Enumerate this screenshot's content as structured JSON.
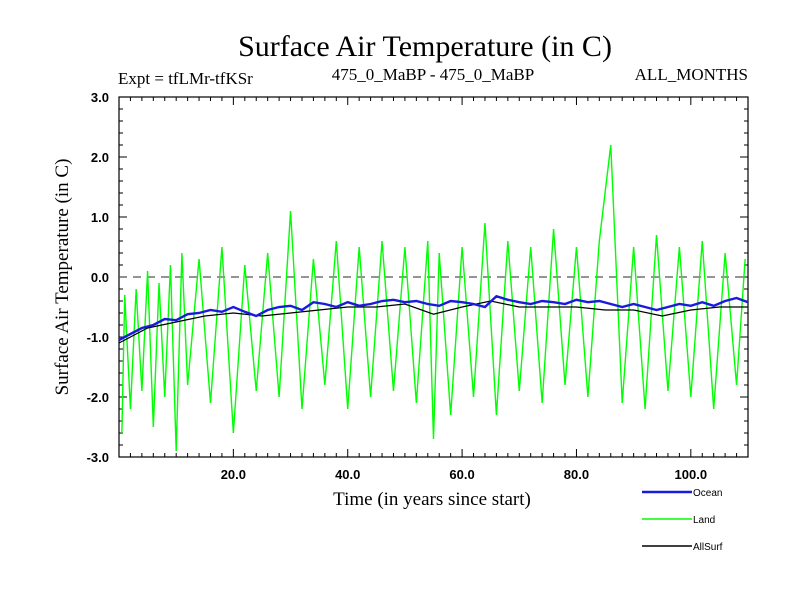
{
  "chart_data": {
    "type": "line",
    "title": "Surface Air Temperature (in C)",
    "subtitle_left": "Expt = tfLMr-tfKSr",
    "subtitle_center": "475_0_MaBP - 475_0_MaBP",
    "subtitle_right": "ALL_MONTHS",
    "xlabel": "Time (in years since start)",
    "ylabel": "Surface Air Temperature (in C)",
    "xlim": [
      0,
      110
    ],
    "ylim": [
      -3.0,
      3.0
    ],
    "x_ticks": [
      20,
      40,
      60,
      80,
      100
    ],
    "x_tick_labels": [
      "20.0",
      "40.0",
      "60.0",
      "80.0",
      "100.0"
    ],
    "y_ticks": [
      -3,
      -2,
      -1,
      0,
      1,
      2,
      3
    ],
    "y_tick_labels": [
      "-3.0",
      "-2.0",
      "-1.0",
      "0.0",
      "1.0",
      "2.0",
      "3.0"
    ],
    "reference_line": 0.0,
    "legend_position": "bottom-right",
    "series": [
      {
        "name": "Ocean",
        "color": "#1a1adc",
        "x": [
          0,
          2,
          4,
          6,
          8,
          10,
          12,
          14,
          16,
          18,
          20,
          22,
          24,
          26,
          28,
          30,
          32,
          34,
          36,
          38,
          40,
          42,
          44,
          46,
          48,
          50,
          52,
          54,
          56,
          58,
          60,
          62,
          64,
          66,
          68,
          70,
          72,
          74,
          76,
          78,
          80,
          82,
          84,
          86,
          88,
          90,
          92,
          94,
          96,
          98,
          100,
          102,
          104,
          106,
          108,
          110
        ],
        "values": [
          -1.05,
          -0.95,
          -0.85,
          -0.8,
          -0.7,
          -0.72,
          -0.62,
          -0.6,
          -0.55,
          -0.58,
          -0.5,
          -0.58,
          -0.65,
          -0.55,
          -0.5,
          -0.48,
          -0.55,
          -0.42,
          -0.45,
          -0.5,
          -0.42,
          -0.48,
          -0.45,
          -0.4,
          -0.38,
          -0.42,
          -0.4,
          -0.45,
          -0.48,
          -0.4,
          -0.42,
          -0.45,
          -0.5,
          -0.32,
          -0.38,
          -0.42,
          -0.45,
          -0.4,
          -0.42,
          -0.45,
          -0.38,
          -0.42,
          -0.4,
          -0.45,
          -0.5,
          -0.45,
          -0.5,
          -0.55,
          -0.5,
          -0.45,
          -0.48,
          -0.42,
          -0.48,
          -0.4,
          -0.35,
          -0.42
        ]
      },
      {
        "name": "Land",
        "color": "#00ff00",
        "x": [
          0.5,
          1,
          2,
          3,
          4,
          5,
          6,
          7,
          8,
          9,
          10,
          11,
          12,
          14,
          16,
          18,
          20,
          22,
          24,
          26,
          28,
          30,
          32,
          34,
          36,
          38,
          40,
          42,
          44,
          46,
          48,
          50,
          52,
          54,
          55,
          56,
          58,
          60,
          62,
          64,
          66,
          68,
          70,
          72,
          74,
          76,
          78,
          80,
          82,
          84,
          86,
          88,
          90,
          92,
          94,
          96,
          98,
          100,
          102,
          104,
          106,
          108,
          109.5
        ],
        "values": [
          -2.6,
          -0.3,
          -2.2,
          -0.2,
          -1.9,
          0.1,
          -2.5,
          -0.1,
          -2.0,
          0.2,
          -2.9,
          0.4,
          -1.8,
          0.3,
          -2.1,
          0.5,
          -2.6,
          0.2,
          -1.9,
          0.4,
          -2.0,
          1.1,
          -2.2,
          0.3,
          -1.8,
          0.6,
          -2.2,
          0.5,
          -2.0,
          0.6,
          -1.9,
          0.5,
          -2.1,
          0.6,
          -2.7,
          0.4,
          -2.3,
          0.5,
          -2.0,
          0.9,
          -2.3,
          0.6,
          -1.9,
          0.5,
          -2.1,
          0.8,
          -1.8,
          0.5,
          -2.0,
          0.6,
          2.2,
          -2.1,
          0.5,
          -2.2,
          0.7,
          -1.9,
          0.5,
          -2.0,
          0.6,
          -2.2,
          0.4,
          -1.8,
          0.3
        ]
      },
      {
        "name": "AllSurf",
        "color": "#000000",
        "x": [
          0,
          5,
          10,
          15,
          20,
          25,
          30,
          35,
          40,
          45,
          50,
          55,
          60,
          65,
          70,
          75,
          80,
          85,
          90,
          95,
          100,
          105,
          110
        ],
        "values": [
          -1.1,
          -0.85,
          -0.75,
          -0.65,
          -0.6,
          -0.65,
          -0.6,
          -0.55,
          -0.5,
          -0.5,
          -0.45,
          -0.62,
          -0.5,
          -0.4,
          -0.5,
          -0.5,
          -0.5,
          -0.55,
          -0.55,
          -0.65,
          -0.55,
          -0.5,
          -0.5
        ]
      }
    ]
  }
}
